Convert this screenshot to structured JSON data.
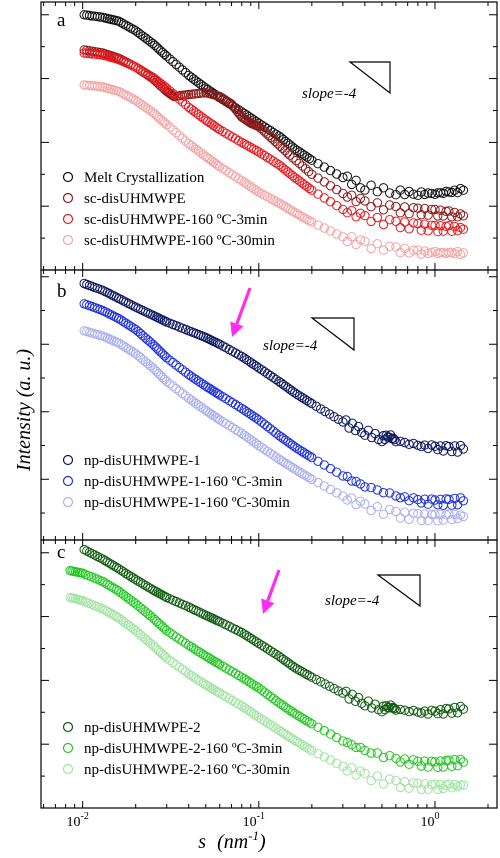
{
  "figure": {
    "ylabel": "Intensity (a. u.)",
    "xlabel_main": "s",
    "xlabel_unit": "(nm",
    "xlabel_exp": "-1",
    "xlabel_close": ")",
    "xtick_labels": [
      {
        "text": "10",
        "exp": "-2"
      },
      {
        "text": "10",
        "exp": "-1"
      },
      {
        "text": "10",
        "exp": "0"
      }
    ]
  },
  "chart_data": [
    {
      "type": "scatter",
      "panel": "a",
      "xscale": "log",
      "yscale": "log",
      "xlim": [
        0.0058,
        2.25
      ],
      "xlabel": "s (nm-1)",
      "ylabel": "Intensity (a. u.)",
      "slope_label": "slope=-4",
      "legend_position": "bottom-left",
      "series": [
        {
          "name": "Melt Crystallization",
          "color": "#111111",
          "x": [
            0.0102,
            0.013,
            0.016,
            0.02,
            0.025,
            0.03,
            0.04,
            0.05,
            0.06,
            0.08,
            0.1,
            0.13,
            0.16,
            0.2,
            0.3,
            0.4,
            0.6,
            0.8,
            1.0,
            1.2,
            1.45
          ],
          "y": [
            7.0,
            6.96,
            6.9,
            6.75,
            6.55,
            6.35,
            6.05,
            5.85,
            5.7,
            5.48,
            5.3,
            5.1,
            4.9,
            4.72,
            4.45,
            4.3,
            4.22,
            4.2,
            4.2,
            4.22,
            4.25
          ]
        },
        {
          "name": "sc-disUHMWPE",
          "color": "#8b1a1a",
          "x": [
            0.0102,
            0.013,
            0.016,
            0.02,
            0.025,
            0.03,
            0.033,
            0.04,
            0.05,
            0.06,
            0.07,
            0.08,
            0.09,
            0.1,
            0.12,
            0.15,
            0.2,
            0.3,
            0.4,
            0.6,
            0.8,
            1.0,
            1.2,
            1.45
          ],
          "y": [
            6.45,
            6.4,
            6.32,
            6.18,
            6.0,
            5.8,
            5.72,
            5.75,
            5.78,
            5.72,
            5.6,
            5.4,
            5.3,
            5.25,
            5.05,
            4.8,
            4.5,
            4.2,
            4.05,
            3.95,
            3.92,
            3.9,
            3.88,
            3.85
          ]
        },
        {
          "name": "sc-disUHMWPE-160 ºC-3min",
          "color": "#e8191e",
          "x": [
            0.0102,
            0.013,
            0.016,
            0.02,
            0.025,
            0.03,
            0.04,
            0.05,
            0.06,
            0.08,
            0.1,
            0.13,
            0.16,
            0.2,
            0.3,
            0.4,
            0.6,
            0.8,
            1.0,
            1.2,
            1.45
          ],
          "y": [
            6.4,
            6.37,
            6.3,
            6.18,
            6.02,
            5.85,
            5.55,
            5.35,
            5.2,
            5.0,
            4.85,
            4.65,
            4.45,
            4.25,
            3.95,
            3.82,
            3.72,
            3.68,
            3.65,
            3.65,
            3.64
          ]
        },
        {
          "name": "sc-disUHMWPE-160 ºC-30min",
          "color": "#f4a3a3",
          "x": [
            0.0102,
            0.013,
            0.016,
            0.02,
            0.025,
            0.03,
            0.04,
            0.05,
            0.06,
            0.08,
            0.1,
            0.13,
            0.16,
            0.2,
            0.3,
            0.4,
            0.6,
            0.8,
            1.0,
            1.2,
            1.45
          ],
          "y": [
            5.9,
            5.87,
            5.8,
            5.66,
            5.47,
            5.28,
            4.98,
            4.78,
            4.62,
            4.4,
            4.22,
            4.05,
            3.9,
            3.75,
            3.52,
            3.4,
            3.32,
            3.28,
            3.27,
            3.27,
            3.27
          ]
        }
      ]
    },
    {
      "type": "scatter",
      "panel": "b",
      "xscale": "log",
      "yscale": "log",
      "xlim": [
        0.0058,
        2.25
      ],
      "xlabel": "s (nm-1)",
      "ylabel": "Intensity (a. u.)",
      "slope_label": "slope=-4",
      "legend_position": "bottom-left",
      "series": [
        {
          "name": "np-disUHMWPE-1",
          "color": "#0b1660",
          "x": [
            0.0102,
            0.013,
            0.016,
            0.02,
            0.025,
            0.03,
            0.04,
            0.05,
            0.06,
            0.08,
            0.1,
            0.13,
            0.16,
            0.2,
            0.3,
            0.4,
            0.5,
            0.55,
            0.6,
            0.8,
            1.0,
            1.2,
            1.45
          ],
          "y": [
            6.9,
            6.8,
            6.68,
            6.55,
            6.43,
            6.33,
            6.2,
            6.1,
            6.0,
            5.82,
            5.65,
            5.45,
            5.28,
            5.12,
            4.85,
            4.7,
            4.6,
            4.65,
            4.57,
            4.5,
            4.47,
            4.45,
            4.45
          ]
        },
        {
          "name": "np-disUHMWPE-1-160 ºC-3min",
          "color": "#1c2fe0",
          "x": [
            0.0102,
            0.013,
            0.016,
            0.02,
            0.025,
            0.03,
            0.04,
            0.05,
            0.06,
            0.08,
            0.1,
            0.13,
            0.16,
            0.2,
            0.3,
            0.4,
            0.6,
            0.8,
            1.0,
            1.2,
            1.45
          ],
          "y": [
            6.6,
            6.5,
            6.38,
            6.22,
            6.0,
            5.8,
            5.55,
            5.38,
            5.25,
            5.05,
            4.88,
            4.65,
            4.48,
            4.32,
            4.05,
            3.9,
            3.75,
            3.68,
            3.66,
            3.66,
            3.68
          ]
        },
        {
          "name": "np-disUHMWPE-1-160 ºC-30min",
          "color": "#a9aef0",
          "x": [
            0.0102,
            0.013,
            0.016,
            0.02,
            0.025,
            0.03,
            0.04,
            0.05,
            0.06,
            0.08,
            0.1,
            0.13,
            0.16,
            0.2,
            0.3,
            0.4,
            0.6,
            0.8,
            1.0,
            1.2,
            1.45
          ],
          "y": [
            6.2,
            6.12,
            6.02,
            5.86,
            5.65,
            5.45,
            5.2,
            5.02,
            4.88,
            4.68,
            4.5,
            4.3,
            4.15,
            4.0,
            3.75,
            3.6,
            3.48,
            3.44,
            3.43,
            3.44,
            3.45
          ]
        }
      ]
    },
    {
      "type": "scatter",
      "panel": "c",
      "xscale": "log",
      "yscale": "log",
      "xlim": [
        0.0058,
        2.25
      ],
      "xlabel": "s (nm-1)",
      "ylabel": "Intensity (a. u.)",
      "slope_label": "slope=-4",
      "legend_position": "bottom-left",
      "series": [
        {
          "name": "np-disUHMWPE-2",
          "color": "#0e5a0e",
          "x": [
            0.0102,
            0.013,
            0.016,
            0.02,
            0.025,
            0.03,
            0.04,
            0.05,
            0.06,
            0.08,
            0.1,
            0.13,
            0.16,
            0.2,
            0.3,
            0.4,
            0.5,
            0.55,
            0.6,
            0.8,
            1.0,
            1.2,
            1.45
          ],
          "y": [
            7.05,
            6.9,
            6.75,
            6.58,
            6.42,
            6.3,
            6.15,
            6.02,
            5.92,
            5.75,
            5.58,
            5.38,
            5.2,
            5.05,
            4.8,
            4.65,
            4.55,
            4.6,
            4.55,
            4.5,
            4.5,
            4.52,
            4.55
          ]
        },
        {
          "name": "np-disUHMWPE-2-160 ºC-3min",
          "color": "#1ec81e",
          "x": [
            0.0085,
            0.01,
            0.013,
            0.016,
            0.02,
            0.025,
            0.03,
            0.04,
            0.05,
            0.06,
            0.08,
            0.1,
            0.13,
            0.16,
            0.2,
            0.3,
            0.4,
            0.6,
            0.8,
            1.0,
            1.2,
            1.45
          ],
          "y": [
            6.72,
            6.68,
            6.55,
            6.4,
            6.2,
            5.98,
            5.78,
            5.55,
            5.38,
            5.25,
            5.05,
            4.88,
            4.65,
            4.48,
            4.32,
            4.05,
            3.9,
            3.76,
            3.7,
            3.68,
            3.7,
            3.72
          ]
        },
        {
          "name": "np-disUHMWPE-2-160 ºC-30min",
          "color": "#9fe39f",
          "x": [
            0.0085,
            0.01,
            0.013,
            0.016,
            0.02,
            0.025,
            0.03,
            0.04,
            0.05,
            0.06,
            0.08,
            0.1,
            0.13,
            0.16,
            0.2,
            0.3,
            0.4,
            0.6,
            0.8,
            1.0,
            1.2,
            1.45
          ],
          "y": [
            6.3,
            6.25,
            6.12,
            5.98,
            5.78,
            5.55,
            5.35,
            5.1,
            4.93,
            4.8,
            4.6,
            4.42,
            4.22,
            4.06,
            3.9,
            3.65,
            3.5,
            3.38,
            3.34,
            3.33,
            3.34,
            3.36
          ]
        }
      ]
    }
  ]
}
